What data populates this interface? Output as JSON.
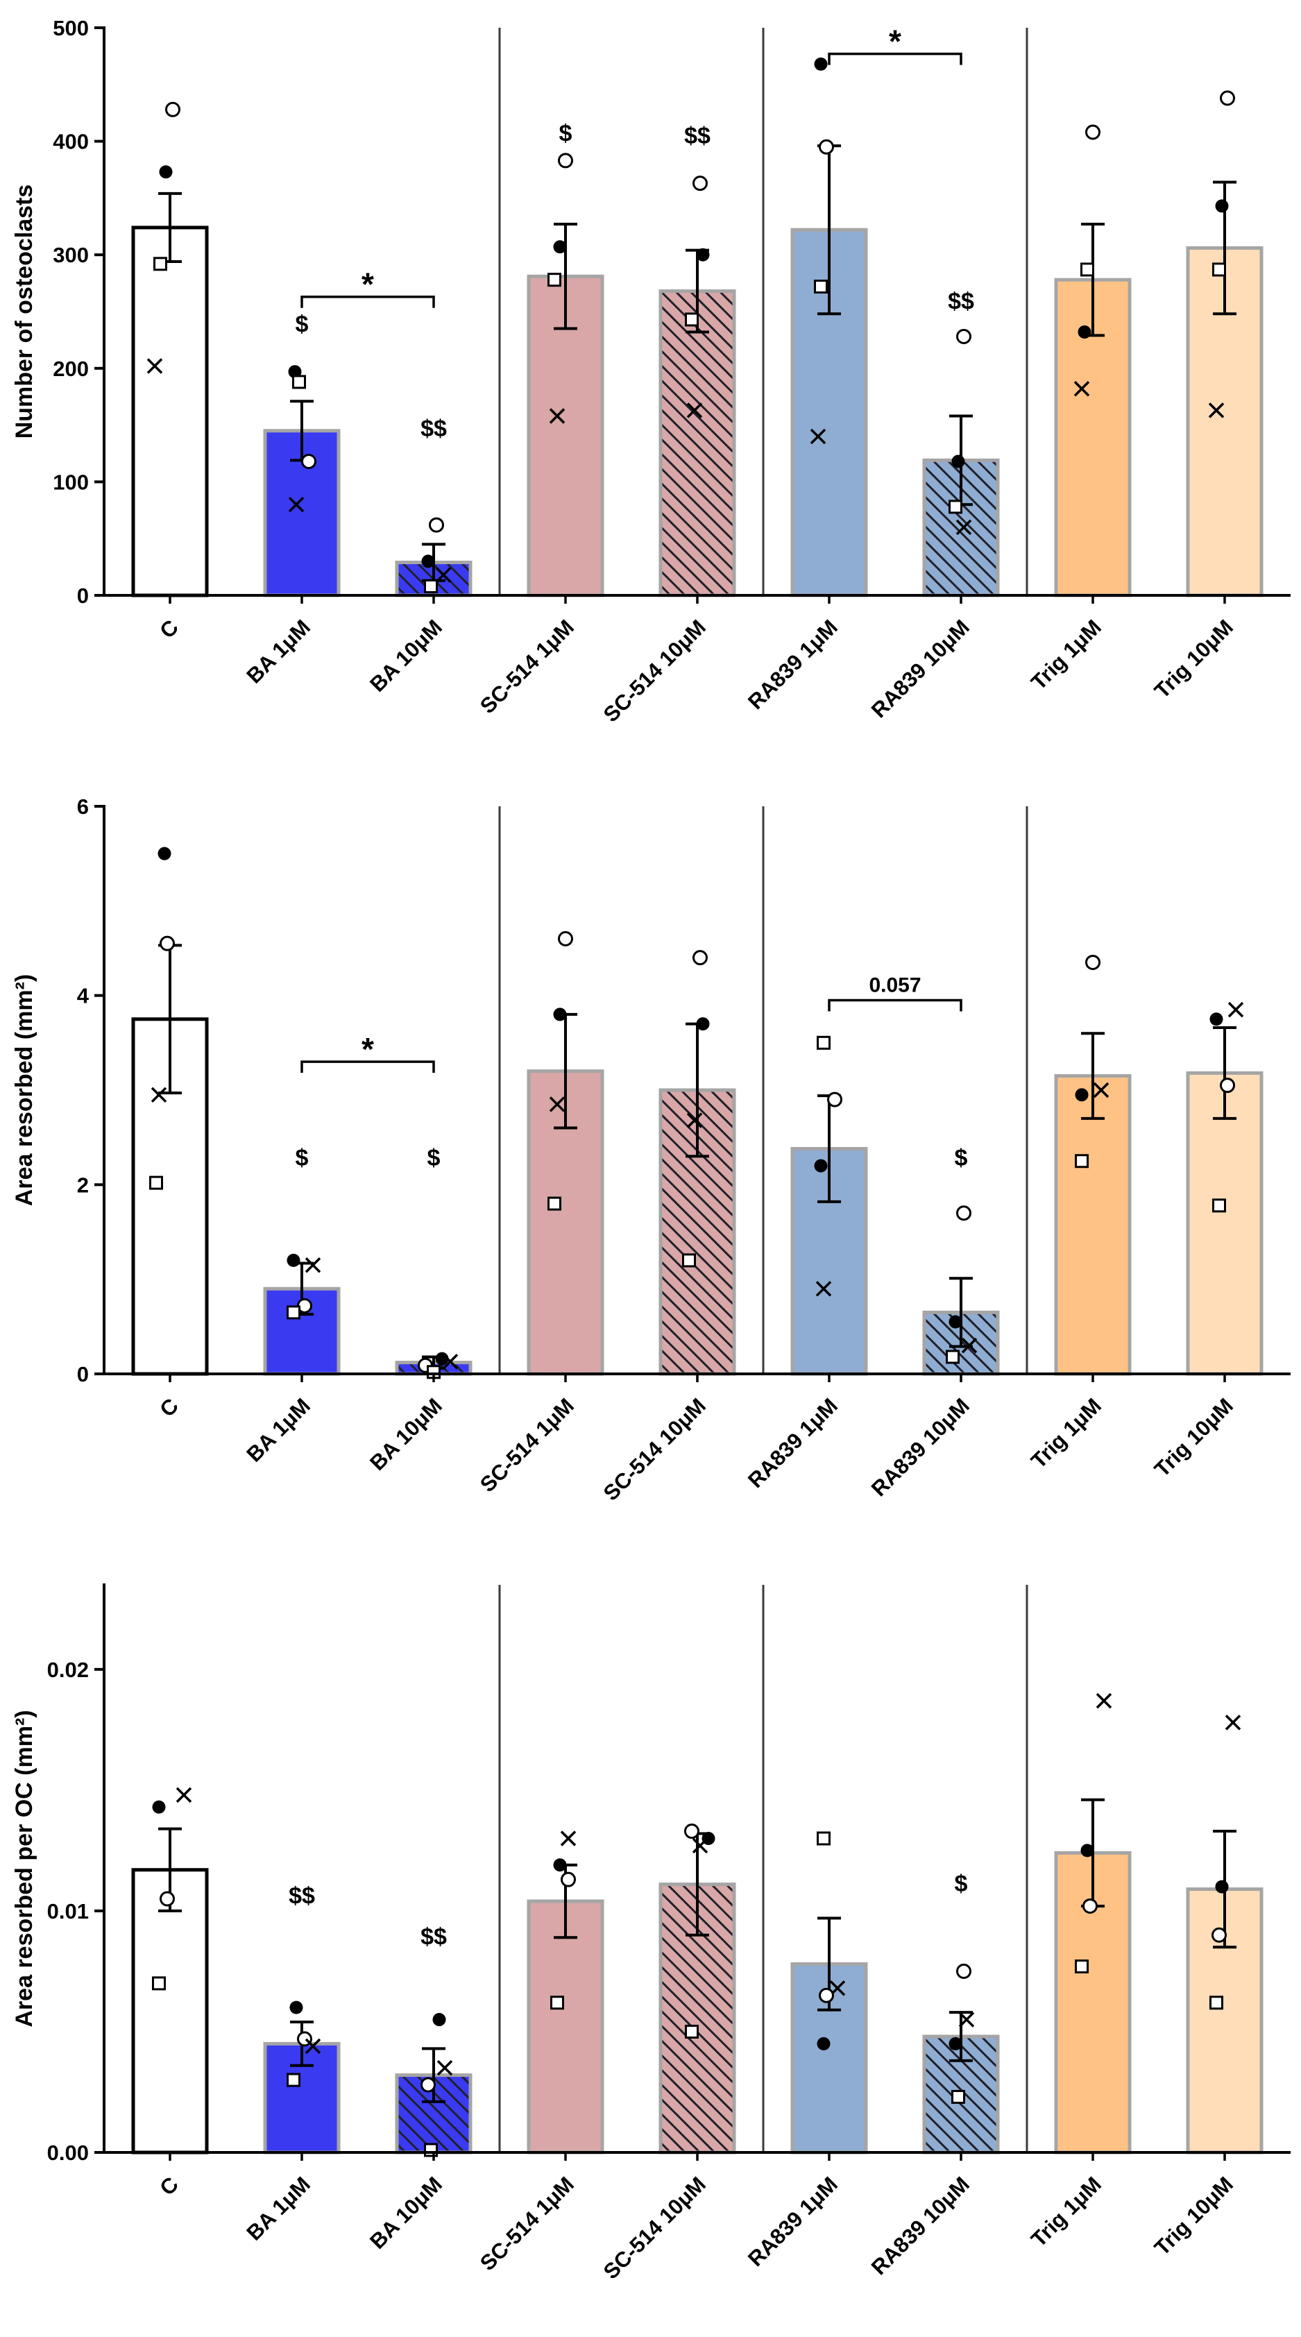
{
  "style": {
    "background": "#ffffff",
    "bar_stroke": "#a5a5a5",
    "control_bar_stroke": "#000000",
    "hatch_color": "#20202a",
    "annotation_color": "#ee1d23",
    "separator_color": "#3b3b3b",
    "axis_color": "#000000",
    "colors": {
      "control": "#ffffff",
      "ba": "#3a3bf1",
      "sc514": "#d9a7a7",
      "ra839": "#8fadd2",
      "trig_1um": "#ffc285",
      "trig_10um": "#ffddb8"
    }
  },
  "chart_data": [
    {
      "type": "bar",
      "title": "",
      "ylabel": "Number of osteoclasts",
      "xlabel": "",
      "ylim": [
        0,
        500
      ],
      "grid": false,
      "legend": "none",
      "categories": [
        "C",
        "BA 1μM",
        "BA 10μM",
        "SC-514 1μM",
        "SC-514 10μM",
        "RA839 1μM",
        "RA839 10μM",
        "Trig 1μM",
        "Trig 10μM"
      ],
      "yticks": [
        {
          "v": 0,
          "label": "0"
        },
        {
          "v": 100,
          "label": "100"
        },
        {
          "v": 200,
          "label": "200"
        },
        {
          "v": 300,
          "label": "300"
        },
        {
          "v": 400,
          "label": "400"
        },
        {
          "v": 500,
          "label": "500"
        }
      ],
      "separators_after": [
        2,
        4,
        6
      ],
      "bars": [
        {
          "label": "C",
          "value": 324,
          "err": 30,
          "fill": "#ffffff",
          "stroke": "#000000",
          "hatch": false,
          "points": [
            [
              "dot",
              373,
              -6
            ],
            [
              "circle",
              428,
              4
            ],
            [
              "square",
              292,
              -14
            ],
            [
              "x",
              202,
              -22
            ]
          ]
        },
        {
          "label": "BA 1μM",
          "value": 145,
          "err": 26,
          "fill": "#3a3bf1",
          "hatch": false,
          "points": [
            [
              "dot",
              197,
              -10
            ],
            [
              "square",
              188,
              -4
            ],
            [
              "circle",
              118,
              10
            ],
            [
              "x",
              80,
              -8
            ]
          ]
        },
        {
          "label": "BA 10μM",
          "value": 29,
          "err": 16,
          "fill": "#3a3bf1",
          "hatch": true,
          "points": [
            [
              "circle",
              62,
              4
            ],
            [
              "dot",
              30,
              -8
            ],
            [
              "x",
              18,
              14
            ],
            [
              "square",
              8,
              -4
            ]
          ]
        },
        {
          "label": "SC-514 1μM",
          "value": 281,
          "err": 46,
          "fill": "#d9a7a7",
          "hatch": false,
          "points": [
            [
              "circle",
              383,
              0
            ],
            [
              "dot",
              307,
              -8
            ],
            [
              "square",
              278,
              -16
            ],
            [
              "x",
              158,
              -12
            ]
          ]
        },
        {
          "label": "SC-514 10μM",
          "value": 268,
          "err": 36,
          "fill": "#d9a7a7",
          "hatch": true,
          "points": [
            [
              "circle",
              363,
              4
            ],
            [
              "dot",
              300,
              8
            ],
            [
              "square",
              243,
              -8
            ],
            [
              "x",
              163,
              -4
            ]
          ]
        },
        {
          "label": "RA839 1μM",
          "value": 322,
          "err": 74,
          "fill": "#8fadd2",
          "hatch": false,
          "points": [
            [
              "dot",
              468,
              -12
            ],
            [
              "circle",
              395,
              -4
            ],
            [
              "square",
              272,
              -12
            ],
            [
              "x",
              140,
              -16
            ]
          ]
        },
        {
          "label": "RA839 10μM",
          "value": 119,
          "err": 39,
          "fill": "#8fadd2",
          "hatch": true,
          "points": [
            [
              "circle",
              228,
              4
            ],
            [
              "dot",
              118,
              -4
            ],
            [
              "square",
              78,
              -8
            ],
            [
              "x",
              60,
              4
            ]
          ]
        },
        {
          "label": "Trig 1μM",
          "value": 278,
          "err": 49,
          "fill": "#ffc285",
          "hatch": false,
          "points": [
            [
              "circle",
              408,
              0
            ],
            [
              "square",
              287,
              -8
            ],
            [
              "dot",
              232,
              -12
            ],
            [
              "x",
              182,
              -16
            ]
          ]
        },
        {
          "label": "Trig 10μM",
          "value": 306,
          "err": 58,
          "fill": "#ffddb8",
          "hatch": false,
          "points": [
            [
              "circle",
              438,
              4
            ],
            [
              "dot",
              343,
              -4
            ],
            [
              "square",
              287,
              -8
            ],
            [
              "x",
              163,
              -12
            ]
          ]
        }
      ],
      "annotations": [
        {
          "bar": 1,
          "y": 232,
          "text": "$"
        },
        {
          "bar": 2,
          "y": 140,
          "text": "$$"
        },
        {
          "bar": 3,
          "y": 400,
          "text": "$"
        },
        {
          "bar": 4,
          "y": 398,
          "text": "$$"
        },
        {
          "bar": 6,
          "y": 252,
          "text": "$$"
        }
      ],
      "brackets": [
        {
          "from": 1,
          "to": 2,
          "y": 263,
          "label": "*"
        },
        {
          "from": 5,
          "to": 6,
          "y": 477,
          "label": "*"
        }
      ]
    },
    {
      "type": "bar",
      "title": "",
      "ylabel": "Area resorbed (mm²)",
      "xlabel": "",
      "ylim": [
        0,
        6
      ],
      "grid": false,
      "legend": "none",
      "categories": [
        "C",
        "BA 1μM",
        "BA 10μM",
        "SC-514 1μM",
        "SC-514 10μM",
        "RA839 1μM",
        "RA839 10μM",
        "Trig 1μM",
        "Trig 10μM"
      ],
      "yticks": [
        {
          "v": 0,
          "label": "0"
        },
        {
          "v": 2,
          "label": "2"
        },
        {
          "v": 4,
          "label": "4"
        },
        {
          "v": 6,
          "label": "6"
        }
      ],
      "separators_after": [
        2,
        4,
        6
      ],
      "bars": [
        {
          "label": "C",
          "value": 3.75,
          "err": 0.78,
          "fill": "#ffffff",
          "stroke": "#000000",
          "hatch": false,
          "points": [
            [
              "dot",
              5.5,
              -8
            ],
            [
              "circle",
              4.55,
              -4
            ],
            [
              "x",
              2.95,
              -16
            ],
            [
              "square",
              2.02,
              -20
            ]
          ]
        },
        {
          "label": "BA 1μM",
          "value": 0.9,
          "err": 0.27,
          "fill": "#3a3bf1",
          "hatch": false,
          "points": [
            [
              "dot",
              1.2,
              -12
            ],
            [
              "x",
              1.15,
              16
            ],
            [
              "circle",
              0.72,
              4
            ],
            [
              "square",
              0.65,
              -12
            ]
          ]
        },
        {
          "label": "BA 10μM",
          "value": 0.12,
          "err": 0.06,
          "fill": "#3a3bf1",
          "hatch": true,
          "points": [
            [
              "dot",
              0.16,
              12
            ],
            [
              "x",
              0.13,
              24
            ],
            [
              "circle",
              0.09,
              -12
            ],
            [
              "square",
              0.02,
              0
            ]
          ]
        },
        {
          "label": "SC-514 1μM",
          "value": 3.2,
          "err": 0.6,
          "fill": "#d9a7a7",
          "hatch": false,
          "points": [
            [
              "circle",
              4.6,
              0
            ],
            [
              "dot",
              3.8,
              -8
            ],
            [
              "x",
              2.85,
              -12
            ],
            [
              "square",
              1.8,
              -16
            ]
          ]
        },
        {
          "label": "SC-514 10μM",
          "value": 3.0,
          "err": 0.7,
          "fill": "#d9a7a7",
          "hatch": true,
          "points": [
            [
              "circle",
              4.4,
              4
            ],
            [
              "dot",
              3.7,
              8
            ],
            [
              "x",
              2.68,
              -4
            ],
            [
              "square",
              1.2,
              -12
            ]
          ]
        },
        {
          "label": "RA839 1μM",
          "value": 2.38,
          "err": 0.56,
          "fill": "#8fadd2",
          "hatch": false,
          "points": [
            [
              "square",
              3.5,
              -8
            ],
            [
              "circle",
              2.9,
              8
            ],
            [
              "dot",
              2.2,
              -12
            ],
            [
              "x",
              0.9,
              -8
            ]
          ]
        },
        {
          "label": "RA839 10μM",
          "value": 0.65,
          "err": 0.36,
          "fill": "#8fadd2",
          "hatch": true,
          "points": [
            [
              "circle",
              1.7,
              4
            ],
            [
              "dot",
              0.55,
              -8
            ],
            [
              "x",
              0.3,
              12
            ],
            [
              "square",
              0.18,
              -12
            ]
          ]
        },
        {
          "label": "Trig 1μM",
          "value": 3.15,
          "err": 0.45,
          "fill": "#ffc285",
          "hatch": false,
          "points": [
            [
              "circle",
              4.35,
              0
            ],
            [
              "x",
              3.0,
              12
            ],
            [
              "dot",
              2.95,
              -16
            ],
            [
              "square",
              2.25,
              -16
            ]
          ]
        },
        {
          "label": "Trig 10μM",
          "value": 3.18,
          "err": 0.48,
          "fill": "#ffddb8",
          "hatch": false,
          "points": [
            [
              "x",
              3.85,
              16
            ],
            [
              "dot",
              3.75,
              -12
            ],
            [
              "circle",
              3.05,
              4
            ],
            [
              "square",
              1.78,
              -8
            ]
          ]
        }
      ],
      "annotations": [
        {
          "bar": 1,
          "y": 2.2,
          "text": "$"
        },
        {
          "bar": 2,
          "y": 2.2,
          "text": "$"
        },
        {
          "bar": 6,
          "y": 2.2,
          "text": "$"
        }
      ],
      "brackets": [
        {
          "from": 1,
          "to": 2,
          "y": 3.3,
          "label": "*"
        },
        {
          "from": 5,
          "to": 6,
          "y": 3.95,
          "label": "0.057"
        }
      ]
    },
    {
      "type": "bar",
      "title": "",
      "ylabel": "Area resorbed per OC (mm²)",
      "xlabel": "",
      "ylim": [
        0,
        0.0235
      ],
      "grid": false,
      "legend": "none",
      "categories": [
        "C",
        "BA 1μM",
        "BA 10μM",
        "SC-514 1μM",
        "SC-514 10μM",
        "RA839 1μM",
        "RA839 10μM",
        "Trig 1μM",
        "Trig 10μM"
      ],
      "yticks": [
        {
          "v": 0,
          "label": "0.00"
        },
        {
          "v": 0.01,
          "label": "0.01"
        },
        {
          "v": 0.02,
          "label": "0.02"
        }
      ],
      "separators_after": [
        2,
        4,
        6
      ],
      "bars": [
        {
          "label": "C",
          "value": 0.0117,
          "err": 0.0017,
          "fill": "#ffffff",
          "stroke": "#000000",
          "hatch": false,
          "points": [
            [
              "x",
              0.0148,
              20
            ],
            [
              "dot",
              0.0143,
              -16
            ],
            [
              "circle",
              0.0105,
              -4
            ],
            [
              "square",
              0.007,
              -16
            ]
          ]
        },
        {
          "label": "BA 1μM",
          "value": 0.0045,
          "err": 0.0009,
          "fill": "#3a3bf1",
          "hatch": false,
          "points": [
            [
              "dot",
              0.006,
              -8
            ],
            [
              "circle",
              0.0047,
              4
            ],
            [
              "x",
              0.0044,
              16
            ],
            [
              "square",
              0.003,
              -12
            ]
          ]
        },
        {
          "label": "BA 10μM",
          "value": 0.0032,
          "err": 0.0011,
          "fill": "#3a3bf1",
          "hatch": true,
          "points": [
            [
              "dot",
              0.0055,
              8
            ],
            [
              "x",
              0.0035,
              16
            ],
            [
              "circle",
              0.0028,
              -8
            ],
            [
              "square",
              0.0001,
              -4
            ]
          ]
        },
        {
          "label": "SC-514 1μM",
          "value": 0.0104,
          "err": 0.0015,
          "fill": "#d9a7a7",
          "hatch": false,
          "points": [
            [
              "x",
              0.013,
              4
            ],
            [
              "dot",
              0.0119,
              -8
            ],
            [
              "circle",
              0.0113,
              4
            ],
            [
              "square",
              0.0062,
              -12
            ]
          ]
        },
        {
          "label": "SC-514 10μM",
          "value": 0.0111,
          "err": 0.0021,
          "fill": "#d9a7a7",
          "hatch": true,
          "points": [
            [
              "circle",
              0.0133,
              -8
            ],
            [
              "dot",
              0.013,
              16
            ],
            [
              "x",
              0.0127,
              4
            ],
            [
              "square",
              0.005,
              -8
            ]
          ]
        },
        {
          "label": "RA839 1μM",
          "value": 0.0078,
          "err": 0.0019,
          "fill": "#8fadd2",
          "hatch": false,
          "points": [
            [
              "square",
              0.013,
              -8
            ],
            [
              "x",
              0.0068,
              12
            ],
            [
              "circle",
              0.0065,
              -4
            ],
            [
              "dot",
              0.0045,
              -8
            ]
          ]
        },
        {
          "label": "RA839 10μM",
          "value": 0.0048,
          "err": 0.001,
          "fill": "#8fadd2",
          "hatch": true,
          "points": [
            [
              "circle",
              0.0075,
              4
            ],
            [
              "x",
              0.0055,
              8
            ],
            [
              "dot",
              0.0045,
              -8
            ],
            [
              "square",
              0.0023,
              -4
            ]
          ]
        },
        {
          "label": "Trig 1μM",
          "value": 0.0124,
          "err": 0.0022,
          "fill": "#ffc285",
          "hatch": false,
          "points": [
            [
              "x",
              0.0187,
              16
            ],
            [
              "dot",
              0.0125,
              -8
            ],
            [
              "circle",
              0.0102,
              -4
            ],
            [
              "square",
              0.0077,
              -16
            ]
          ]
        },
        {
          "label": "Trig 10μM",
          "value": 0.0109,
          "err": 0.0024,
          "fill": "#ffddb8",
          "hatch": false,
          "points": [
            [
              "x",
              0.0178,
              12
            ],
            [
              "dot",
              0.011,
              -4
            ],
            [
              "circle",
              0.009,
              -8
            ],
            [
              "square",
              0.0062,
              -12
            ]
          ]
        }
      ],
      "annotations": [
        {
          "bar": 1,
          "y": 0.0103,
          "text": "$$"
        },
        {
          "bar": 2,
          "y": 0.0086,
          "text": "$$"
        },
        {
          "bar": 6,
          "y": 0.0108,
          "text": "$"
        }
      ],
      "brackets": []
    }
  ]
}
